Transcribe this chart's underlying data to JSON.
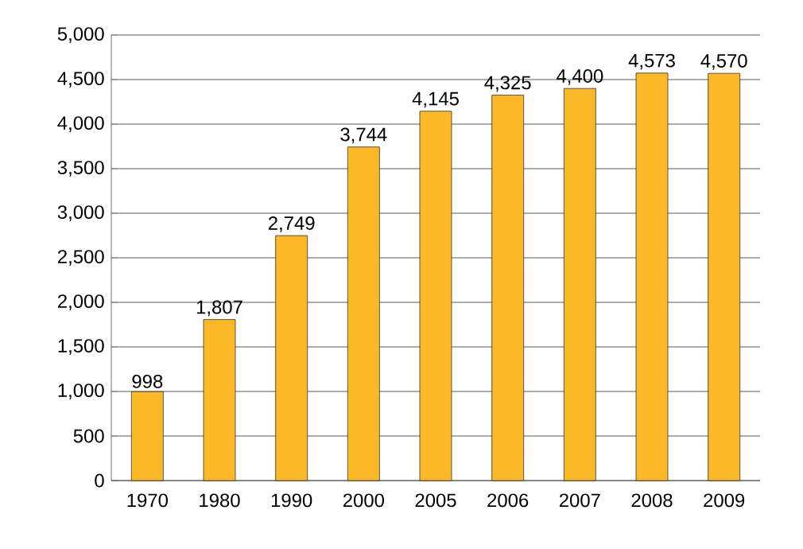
{
  "chart_data": {
    "type": "bar",
    "categories": [
      "1970",
      "1980",
      "1990",
      "2000",
      "2005",
      "2006",
      "2007",
      "2008",
      "2009"
    ],
    "values": [
      998,
      1807,
      2749,
      3744,
      4145,
      4325,
      4400,
      4573,
      4570
    ],
    "value_labels": [
      "998",
      "1,807",
      "2,749",
      "3,744",
      "4,145",
      "4,325",
      "4,400",
      "4,573",
      "4,570"
    ],
    "color": "#fdb827",
    "ylim": [
      0,
      5000
    ],
    "yticks": [
      {
        "value": 0,
        "label": "0"
      },
      {
        "value": 500,
        "label": "500"
      },
      {
        "value": 1000,
        "label": "1,000"
      },
      {
        "value": 1500,
        "label": "1,500"
      },
      {
        "value": 2000,
        "label": "2,000"
      },
      {
        "value": 2500,
        "label": "2,500"
      },
      {
        "value": 3000,
        "label": "3,000"
      },
      {
        "value": 3500,
        "label": "3,500"
      },
      {
        "value": 4000,
        "label": "4,000"
      },
      {
        "value": 4500,
        "label": "4,500"
      },
      {
        "value": 5000,
        "label": "5,000"
      }
    ],
    "grid": "y"
  }
}
